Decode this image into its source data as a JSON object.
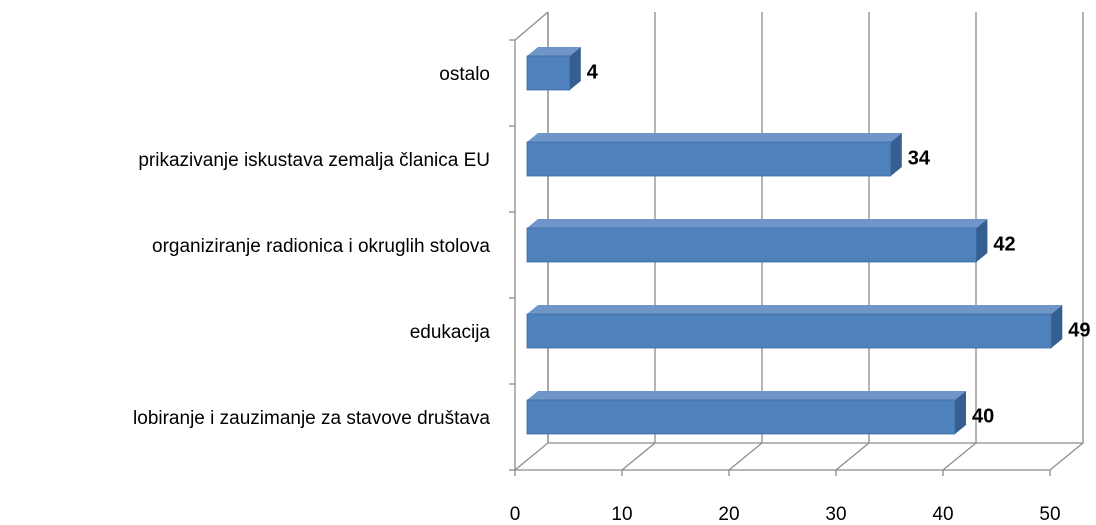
{
  "chart_data": {
    "type": "bar",
    "orientation": "horizontal",
    "three_d": true,
    "categories": [
      "ostalo",
      "prikazivanje iskustava zemalja članica EU",
      "organiziranje radionica i okruglih stolova",
      "edukacija",
      "lobiranje i zauzimanje za stavove društava"
    ],
    "values": [
      4,
      34,
      42,
      49,
      40
    ],
    "color": "#4f81bd",
    "xlim": [
      0,
      50
    ],
    "xticks": [
      0,
      10,
      20,
      30,
      40,
      50
    ],
    "grid": true
  }
}
